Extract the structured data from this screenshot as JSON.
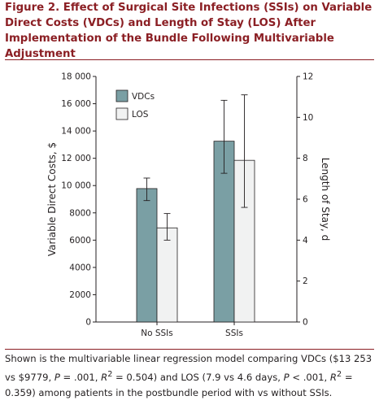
{
  "figure": {
    "title": "Figure 2. Effect of Surgical Site Infections (SSIs) on Variable Direct Costs (VDCs) and Length of Stay (LOS) After Implementation of the Bundle Following Multivariable Adjustment",
    "caption_parts": {
      "p1": "Shown is the multivariable linear regression model comparing VDCs ($13 253 vs $9779, ",
      "p_sym1": "P",
      "p2": " = .001, ",
      "r_sym1": "R",
      "sup1": "2",
      "p3": " = 0.504) and LOS (7.9 vs 4.6 days, ",
      "p_sym2": "P",
      "p4": " < .001, ",
      "r_sym2": "R",
      "sup2": "2",
      "p5": " = 0.359) among patients in the postbundle period with vs without SSIs."
    }
  },
  "chart_data": {
    "type": "bar",
    "categories": [
      "No SSIs",
      "SSIs"
    ],
    "series": [
      {
        "name": "VDCs",
        "axis": "left",
        "color": "#7a9fa4",
        "values": [
          9779,
          13253
        ],
        "error_low": [
          8900,
          10900
        ],
        "error_high": [
          10550,
          16250
        ]
      },
      {
        "name": "LOS",
        "axis": "right",
        "color": "#f1f2f2",
        "values": [
          4.6,
          7.9
        ],
        "error_low": [
          4.0,
          5.6
        ],
        "error_high": [
          5.3,
          11.1
        ]
      }
    ],
    "ylabel_left": "Variable Direct Costs, $",
    "ylabel_right": "Length of Stay, d",
    "ylim_left": [
      0,
      18000
    ],
    "ylim_right": [
      0,
      12
    ],
    "yticks_left": [
      0,
      2000,
      4000,
      6000,
      8000,
      10000,
      12000,
      14000,
      16000,
      18000
    ],
    "ytick_labels_left": [
      "0",
      "2000",
      "4000",
      "6000",
      "8000",
      "10 000",
      "12 000",
      "14 000",
      "16 000",
      "18 000"
    ],
    "yticks_right": [
      0,
      2,
      4,
      6,
      8,
      10,
      12
    ],
    "ytick_labels_right": [
      "0",
      "2",
      "4",
      "6",
      "8",
      "10",
      "12"
    ],
    "legend": {
      "placement": "top-left",
      "entries": [
        "VDCs",
        "LOS"
      ]
    },
    "grid": false
  }
}
